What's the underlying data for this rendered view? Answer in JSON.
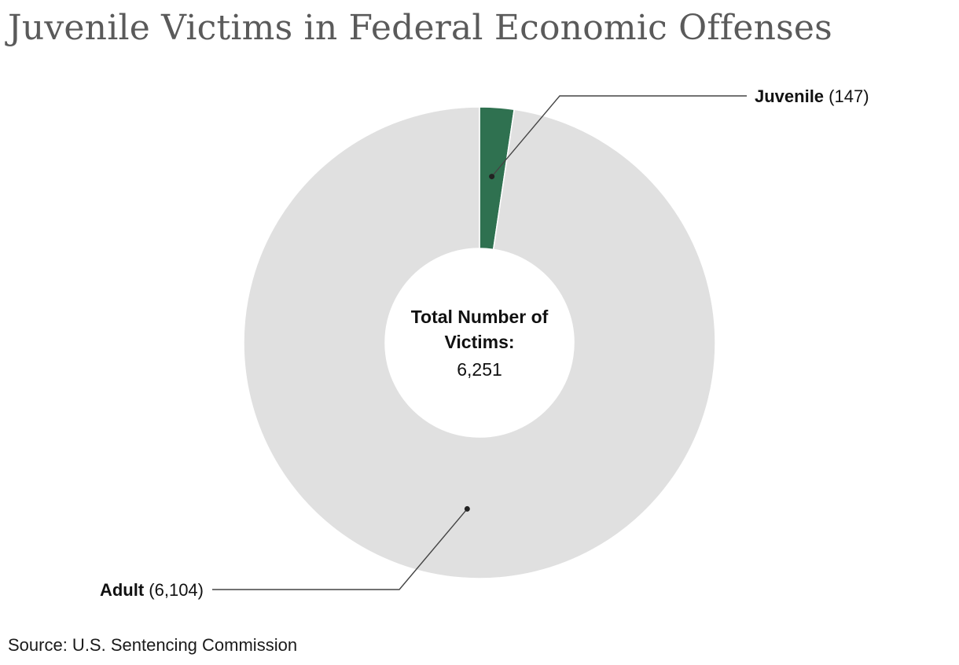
{
  "title": "Juvenile Victims in Federal Economic Offenses",
  "source": "Source: U.S. Sentencing Commission",
  "center": {
    "line1": "Total Number of",
    "line2": "Victims:",
    "value": "6,251"
  },
  "chart_data": {
    "type": "pie",
    "donut": true,
    "slices": [
      {
        "label": "Juvenile",
        "value": 147,
        "value_text": "(147)",
        "color": "#2f7150"
      },
      {
        "label": "Adult",
        "value": 6104,
        "value_text": "(6,104)",
        "color": "#e0e0e0"
      }
    ],
    "total": 6251
  }
}
